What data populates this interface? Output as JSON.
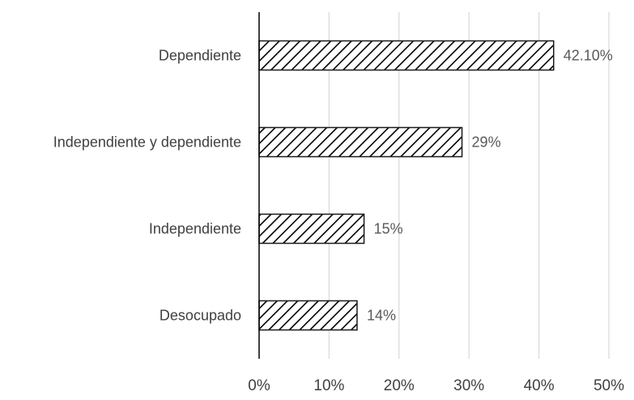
{
  "chart_data": {
    "type": "bar",
    "orientation": "horizontal",
    "categories": [
      "Dependiente",
      "Independiente y dependiente",
      "Independiente",
      "Desocupado"
    ],
    "values": [
      42.1,
      29,
      15,
      14
    ],
    "value_labels": [
      "42.10%",
      "29%",
      "15%",
      "14%"
    ],
    "xlim": [
      0,
      50
    ],
    "x_ticks": [
      0,
      10,
      20,
      30,
      40,
      50
    ],
    "x_tick_labels": [
      "0%",
      "10%",
      "20%",
      "30%",
      "40%",
      "50%"
    ],
    "grid": "vertical",
    "bar_fill": "diagonal-hatch",
    "colors": {
      "bar_stroke": "#1a1a1a",
      "hatch": "#000000",
      "grid": "#d9d9d9",
      "text": "#404040"
    }
  }
}
